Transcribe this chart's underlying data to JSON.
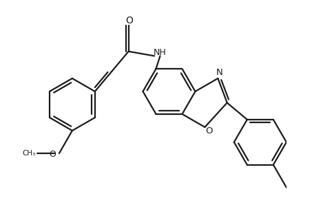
{
  "bg_color": "#ffffff",
  "line_color": "#1a1a1a",
  "line_width": 1.6,
  "figsize": [
    4.53,
    3.04
  ],
  "dpi": 100,
  "xlim": [
    0.0,
    10.0
  ],
  "ylim": [
    -2.0,
    6.0
  ]
}
